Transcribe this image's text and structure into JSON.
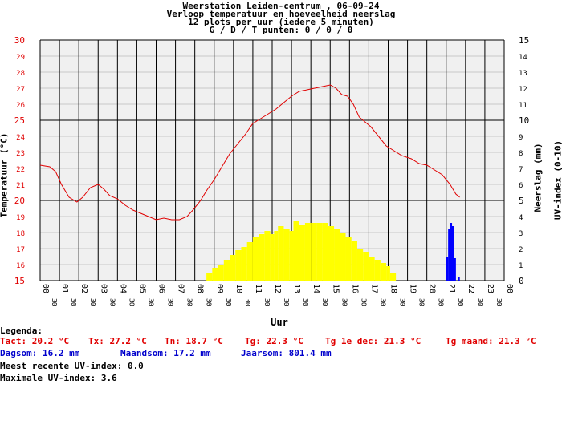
{
  "header": {
    "line1": "Weerstation Leiden-centrum , 06-09-24",
    "line2": "Verloop temperatuur en hoeveelheid neerslag",
    "line3": "12 plots per uur (iedere 5 minuten)",
    "line4": "G / D / T punten: 0 / 0 / 0"
  },
  "chart_data": {
    "type": "line",
    "xlabel": "Uur",
    "ylabel_left": "Temperatuur (°C)",
    "ylabel_right_1": "Neerslag (mm)",
    "ylabel_right_2": "UV-index (0-10)",
    "ylim_left": [
      15,
      30
    ],
    "ylim_right": [
      0,
      15
    ],
    "left_ticks": [
      "15",
      "16",
      "17",
      "18",
      "19",
      "20",
      "21",
      "22",
      "23",
      "24",
      "25",
      "26",
      "27",
      "28",
      "29",
      "30"
    ],
    "right_ticks": [
      "0",
      "1",
      "2",
      "3",
      "4",
      "5",
      "6",
      "7",
      "8",
      "9",
      "10",
      "11",
      "12",
      "13",
      "14",
      "15"
    ],
    "hour_labels": [
      "00",
      "01",
      "02",
      "03",
      "04",
      "05",
      "06",
      "07",
      "08",
      "09",
      "10",
      "11",
      "12",
      "13",
      "14",
      "15",
      "16",
      "17",
      "18",
      "19",
      "20",
      "21",
      "22",
      "23",
      "00"
    ],
    "half_label": "30",
    "grid": true,
    "colors": {
      "temperature": "#e00000",
      "uv": "#ffff00",
      "rain": "#0000ff",
      "plot_bg": "#f0f0f0",
      "grid_major": "#000000",
      "grid_minor": "#c8c8c8",
      "left_axis_text": "#e00000"
    },
    "temperature": {
      "name": "Temperatuur",
      "x_hours": [
        0,
        0.5,
        0.8,
        1.1,
        1.5,
        1.9,
        2.2,
        2.6,
        3.0,
        3.3,
        3.6,
        4.0,
        4.4,
        4.8,
        5.2,
        5.6,
        6.0,
        6.4,
        6.8,
        7.2,
        7.6,
        7.9,
        8.3,
        8.6,
        9.0,
        9.4,
        9.8,
        10.2,
        10.6,
        11.0,
        11.4,
        11.8,
        12.2,
        12.6,
        13.0,
        13.4,
        13.8,
        14.2,
        14.6,
        15.0,
        15.3,
        15.6,
        15.9,
        16.2,
        16.5,
        16.8,
        17.1,
        17.5,
        17.9,
        18.3,
        18.7,
        19.2,
        19.6,
        20.0,
        20.4,
        20.8,
        21.2,
        21.5,
        21.7
      ],
      "celsius": [
        22.2,
        22.1,
        21.8,
        21.0,
        20.2,
        19.9,
        20.2,
        20.8,
        21.0,
        20.7,
        20.3,
        20.1,
        19.7,
        19.4,
        19.2,
        19.0,
        18.8,
        18.9,
        18.8,
        18.8,
        19.0,
        19.4,
        20.0,
        20.6,
        21.3,
        22.1,
        22.9,
        23.5,
        24.1,
        24.8,
        25.1,
        25.4,
        25.7,
        26.1,
        26.5,
        26.8,
        26.9,
        27.0,
        27.1,
        27.2,
        27.0,
        26.6,
        26.5,
        26.0,
        25.2,
        24.9,
        24.6,
        24.0,
        23.4,
        23.1,
        22.8,
        22.6,
        22.3,
        22.2,
        21.9,
        21.6,
        21.0,
        20.4,
        20.2
      ]
    },
    "uv_index": {
      "name": "UV-index",
      "x_hours": [
        8.6,
        8.9,
        9.2,
        9.5,
        9.8,
        10.1,
        10.4,
        10.7,
        11.0,
        11.3,
        11.6,
        11.9,
        12.1,
        12.3,
        12.6,
        12.9,
        13.1,
        13.4,
        13.7,
        14.0,
        14.3,
        14.6,
        14.9,
        15.2,
        15.5,
        15.8,
        16.1,
        16.4,
        16.7,
        17.0,
        17.3,
        17.6,
        17.9,
        18.1
      ],
      "values": [
        0.5,
        0.8,
        1.0,
        1.3,
        1.6,
        1.9,
        2.1,
        2.4,
        2.7,
        2.9,
        3.1,
        2.9,
        3.1,
        3.4,
        3.2,
        3.1,
        3.7,
        3.5,
        3.6,
        3.6,
        3.6,
        3.6,
        3.4,
        3.2,
        3.0,
        2.7,
        2.5,
        2.0,
        1.8,
        1.5,
        1.3,
        1.1,
        0.9,
        0.5
      ]
    },
    "rain": {
      "name": "Neerslag",
      "bars": [
        {
          "hour": 21.0,
          "mm": 1.5
        },
        {
          "hour": 21.1,
          "mm": 3.2
        },
        {
          "hour": 21.2,
          "mm": 3.6
        },
        {
          "hour": 21.3,
          "mm": 3.4
        },
        {
          "hour": 21.4,
          "mm": 1.4
        },
        {
          "hour": 21.6,
          "mm": 0.2
        }
      ]
    }
  },
  "legend": {
    "title": "Legenda:",
    "tact": "Tact: 20.2 °C",
    "tx": "Tx: 27.2 °C",
    "tn": "Tn: 18.7 °C",
    "tg": "Tg: 22.3 °C",
    "tg_dec": "Tg 1e dec: 21.3 °C",
    "tg_month": "Tg maand: 21.3 °C",
    "dagsom": "Dagsom: 16.2 mm",
    "maandsom": "Maandsom: 17.2 mm",
    "jaarsom": "Jaarsom: 801.4 mm",
    "uv_recent": "Meest recente UV-index: 0.0",
    "uv_max": "Maximale UV-index: 3.6"
  }
}
